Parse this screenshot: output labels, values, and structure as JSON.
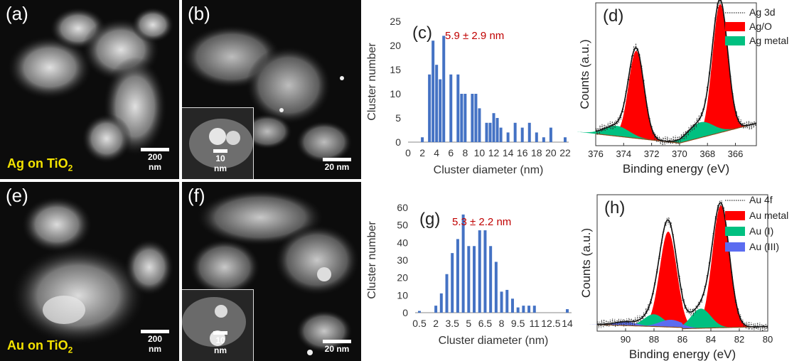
{
  "panels": {
    "a": {
      "label": "(a)",
      "sample": "Ag on TiO",
      "sub": "2",
      "scale": "200 nm"
    },
    "b": {
      "label": "(b)",
      "scale": "20 nm",
      "inset_scale": "10 nm"
    },
    "e": {
      "label": "(e)",
      "sample": "Au on TiO",
      "sub": "2",
      "scale": "200 nm"
    },
    "f": {
      "label": "(f)",
      "scale": "20 nm",
      "inset_scale": "10 nm"
    }
  },
  "colors": {
    "bar": "#4472c4",
    "annotation": "#c00000",
    "red_fill": "#ff0000",
    "green_fill": "#00c080",
    "blue_fill": "#5b6cf0"
  },
  "chart_data": [
    {
      "id": "c",
      "type": "bar",
      "panel_label": "(c)",
      "annotation": "5.9 ± 2.9 nm",
      "xlabel": "Cluster diameter (nm)",
      "ylabel": "Cluster number",
      "xlim": [
        0,
        22.5
      ],
      "ylim": [
        0,
        25
      ],
      "xticks": [
        0,
        2,
        4,
        6,
        8,
        10,
        12,
        14,
        16,
        18,
        20,
        22
      ],
      "yticks": [
        0,
        5,
        10,
        15,
        20,
        25
      ],
      "x": [
        2,
        3,
        3.5,
        4,
        4.5,
        5,
        6,
        7,
        7.5,
        8,
        9,
        9.5,
        10,
        11,
        11.5,
        12,
        12.5,
        13,
        14,
        15,
        16,
        17,
        18,
        19,
        20,
        22
      ],
      "values": [
        1,
        14,
        21,
        16,
        13,
        22,
        14,
        14,
        10,
        10,
        10,
        10,
        7,
        4,
        4,
        6,
        5,
        3,
        2,
        4,
        3,
        4,
        2,
        1,
        3,
        1
      ]
    },
    {
      "id": "g",
      "type": "bar",
      "panel_label": "(g)",
      "annotation": "5.3 ± 2.2 nm",
      "xlabel": "Cluster diameter (nm)",
      "ylabel": "Cluster number",
      "categories": [
        "0.5",
        "1",
        "1.5",
        "2",
        "2.5",
        "3",
        "3.5",
        "4",
        "4.5",
        "5",
        "5.5",
        "6",
        "6.5",
        "7",
        "7.5",
        "8",
        "8.5",
        "9",
        "9.5",
        "10",
        "10.5",
        "11",
        "11.5",
        "12",
        "12.5",
        "13",
        "13.5",
        "14"
      ],
      "tick_labels": [
        "0.5",
        "2",
        "3.5",
        "5",
        "6.5",
        "8",
        "9.5",
        "11",
        "12.5",
        "14"
      ],
      "ylim": [
        0,
        60
      ],
      "yticks": [
        0,
        10,
        20,
        30,
        40,
        50,
        60
      ],
      "values": [
        1,
        0,
        0,
        4,
        11,
        22,
        34,
        42,
        56,
        38,
        38,
        47,
        47,
        38,
        29,
        12,
        13,
        8,
        3,
        4,
        4,
        4,
        0,
        0,
        0,
        0,
        0,
        2
      ]
    },
    {
      "id": "d",
      "type": "line",
      "panel_label": "(d)",
      "xlabel": "Binding energy (eV)",
      "ylabel": "Counts (a.u.)",
      "xlim": [
        376,
        364.5
      ],
      "xticks": [
        376,
        374,
        372,
        370,
        368,
        366
      ],
      "legend": [
        "Ag 3d",
        "Ag/O",
        "Ag metal"
      ],
      "legend_position": "top-right",
      "peaks": [
        {
          "component": "Ag/O",
          "center": 373.1,
          "height": 0.68
        },
        {
          "component": "Ag/O",
          "center": 367.1,
          "height": 1.0
        },
        {
          "component": "Ag metal",
          "center": 374.5,
          "height": 0.08
        },
        {
          "component": "Ag metal",
          "center": 368.5,
          "height": 0.12
        }
      ]
    },
    {
      "id": "h",
      "type": "line",
      "panel_label": "(h)",
      "xlabel": "Binding energy (eV)",
      "ylabel": "Counts (a.u.)",
      "xlim": [
        92,
        80
      ],
      "xticks": [
        90,
        88,
        86,
        84,
        82,
        80
      ],
      "legend": [
        "Au 4f",
        "Au metal",
        "Au (I)",
        "Au (III)"
      ],
      "legend_position": "top-right",
      "peaks": [
        {
          "component": "Au metal",
          "center": 87.0,
          "height": 0.78
        },
        {
          "component": "Au metal",
          "center": 83.3,
          "height": 1.0
        },
        {
          "component": "Au (I)",
          "center": 88.0,
          "height": 0.1
        },
        {
          "component": "Au (I)",
          "center": 84.7,
          "height": 0.16
        },
        {
          "component": "Au (III)",
          "center": 90.0,
          "height": 0.03
        },
        {
          "component": "Au (III)",
          "center": 86.8,
          "height": 0.06
        }
      ]
    }
  ]
}
